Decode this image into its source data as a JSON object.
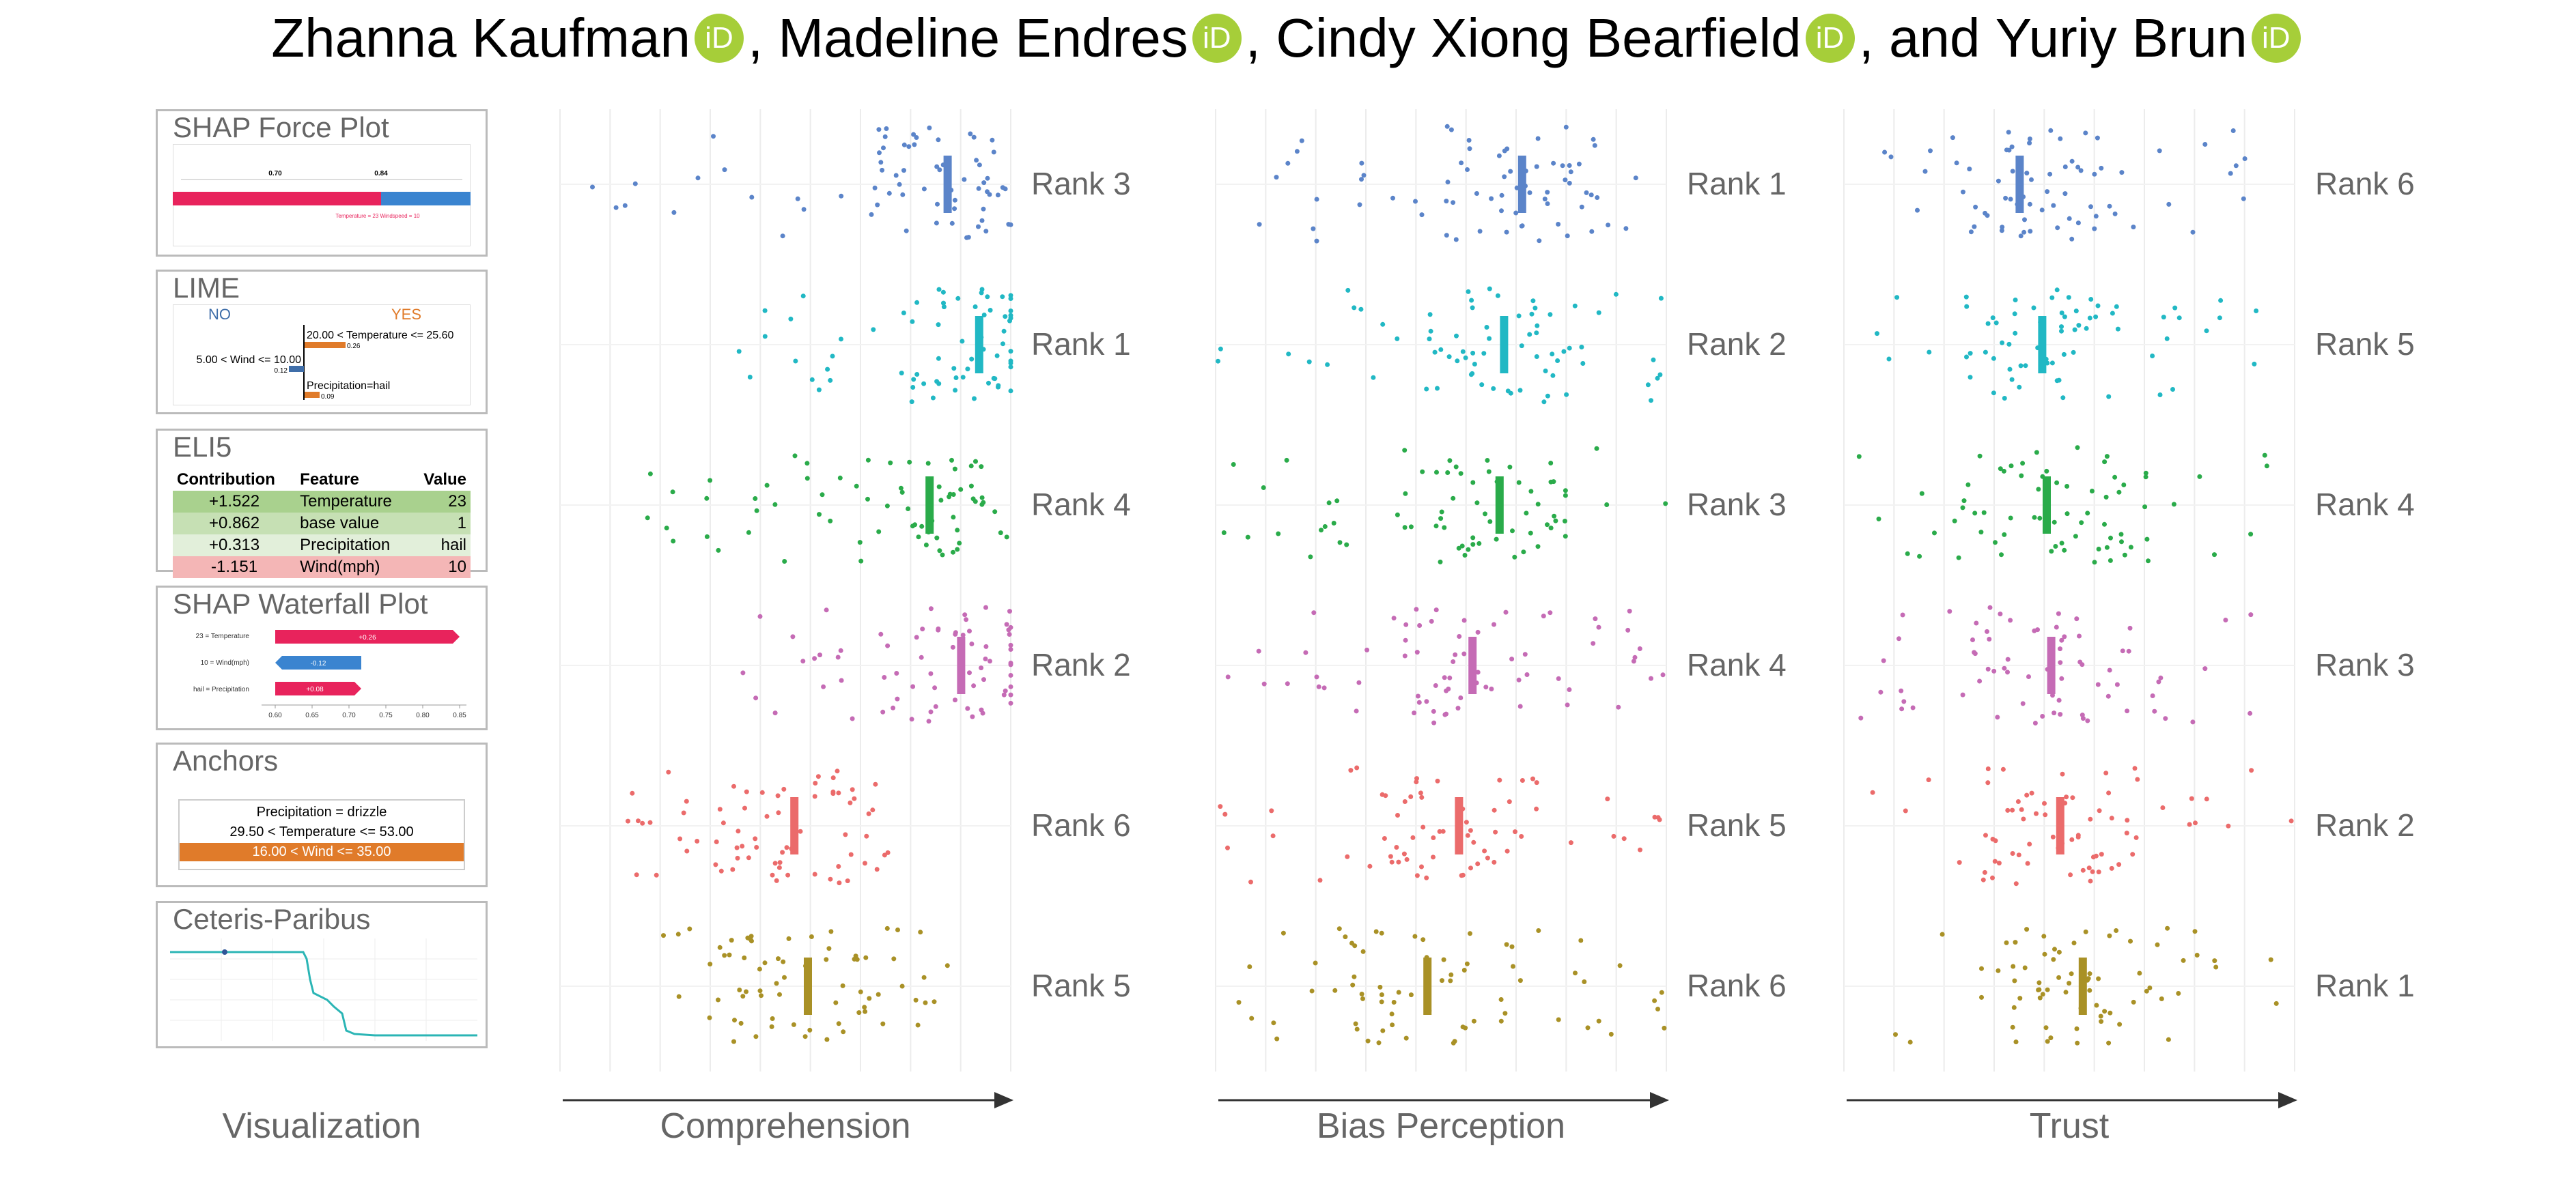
{
  "authors": [
    {
      "name": "Zhanna Kaufman",
      "suffix": ""
    },
    {
      "name": "Madeline Endres",
      "suffix": ""
    },
    {
      "name": "Cindy Xiong Bearfield",
      "suffix": ""
    },
    {
      "name": "Yuriy Brun",
      "suffix": ""
    }
  ],
  "orcid_glyph": "iD",
  "orcid_color": "#a6ce39",
  "separator": ", ",
  "last_separator": ", and ",
  "panels": {
    "shap_force": {
      "title": "SHAP Force Plot",
      "labels": [
        "0.70",
        "0.84"
      ],
      "caption": "Temperature = 23  Windspeed = 10",
      "colors": {
        "positive": "#e8235c",
        "negative": "#3a84d0"
      }
    },
    "lime": {
      "title": "LIME",
      "no": "NO",
      "yes": "YES",
      "rule_temp": "20.00 < Temperature <= 25.60",
      "val_temp": "0.26",
      "rule_wind": "5.00 < Wind <= 10.00",
      "val_wind": "0.12",
      "rule_precip": "Precipitation=hail",
      "val_precip": "0.09",
      "colors": {
        "no": "#3f6ea9",
        "yes": "#e07b2a"
      }
    },
    "eli5": {
      "title": "ELI5",
      "headers": [
        "Contribution",
        "Feature",
        "Value"
      ],
      "rows": [
        {
          "contribution": "+1.522",
          "feature": "Temperature",
          "value": "23",
          "color": "#a9d18e"
        },
        {
          "contribution": "+0.862",
          "feature": "base value",
          "value": "1",
          "color": "#c6e0b4"
        },
        {
          "contribution": "+0.313",
          "feature": "Precipitation",
          "value": "hail",
          "color": "#e2efda"
        },
        {
          "contribution": "-1.151",
          "feature": "Wind(mph)",
          "value": "10",
          "color": "#f4b6b6"
        }
      ]
    },
    "shap_waterfall": {
      "title": "SHAP Waterfall Plot",
      "rows": [
        {
          "label": "23 = Temperature",
          "value": "+0.26",
          "color": "#e8235c"
        },
        {
          "label": "10 = Wind(mph)",
          "value": "-0.12",
          "color": "#3a84d0"
        },
        {
          "label": "hail = Precipitation",
          "value": "+0.08",
          "color": "#e8235c"
        }
      ],
      "ticks": [
        "0.60",
        "0.65",
        "0.70",
        "0.75",
        "0.80",
        "0.85"
      ]
    },
    "anchors": {
      "title": "Anchors",
      "lines": [
        "Precipitation = drizzle",
        "29.50 < Temperature <= 53.00",
        "16.00 < Wind <= 35.00"
      ],
      "highlight_color": "#e07b2a"
    },
    "ceteris": {
      "title": "Ceteris-Paribus",
      "line_color": "#2bb5b5"
    }
  },
  "bottom_labels": {
    "visualization": "Visualization",
    "comprehension": "Comprehension",
    "bias": "Bias Perception",
    "trust": "Trust"
  },
  "series_colors": [
    "#5b84c9",
    "#21b8c4",
    "#2aab4a",
    "#c56bb5",
    "#eb6b6b",
    "#a99126"
  ],
  "chart_data": [
    {
      "type": "scatter",
      "title": "",
      "xlabel": "Comprehension",
      "ylabel": "",
      "ylim": [
        0,
        6
      ],
      "rows": [
        "SHAP Force Plot",
        "LIME",
        "ELI5",
        "SHAP Waterfall Plot",
        "Anchors",
        "Ceteris-Paribus"
      ],
      "ranks": [
        "Rank 3",
        "Rank 1",
        "Rank 4",
        "Rank 2",
        "Rank 6",
        "Rank 5"
      ],
      "means": [
        0.86,
        0.93,
        0.82,
        0.89,
        0.52,
        0.55
      ],
      "spreads": [
        [
          0.0,
          1.0
        ],
        [
          0.35,
          1.0
        ],
        [
          0.18,
          1.0
        ],
        [
          0.4,
          1.0
        ],
        [
          0.14,
          0.75
        ],
        [
          0.22,
          0.88
        ]
      ]
    },
    {
      "type": "scatter",
      "title": "",
      "xlabel": "Bias Perception",
      "ylabel": "",
      "ylim": [
        0,
        6
      ],
      "rows": [
        "SHAP Force Plot",
        "LIME",
        "ELI5",
        "SHAP Waterfall Plot",
        "Anchors",
        "Ceteris-Paribus"
      ],
      "ranks": [
        "Rank 1",
        "Rank 2",
        "Rank 3",
        "Rank 4",
        "Rank 5",
        "Rank 6"
      ],
      "means": [
        0.68,
        0.64,
        0.63,
        0.57,
        0.54,
        0.47
      ],
      "spreads": [
        [
          0.0,
          1.0
        ],
        [
          0.0,
          1.0
        ],
        [
          0.0,
          1.0
        ],
        [
          0.0,
          1.0
        ],
        [
          0.0,
          1.0
        ],
        [
          0.0,
          1.0
        ]
      ]
    },
    {
      "type": "scatter",
      "title": "",
      "xlabel": "Trust",
      "ylabel": "",
      "ylim": [
        0,
        6
      ],
      "rows": [
        "SHAP Force Plot",
        "LIME",
        "ELI5",
        "SHAP Waterfall Plot",
        "Anchors",
        "Ceteris-Paribus"
      ],
      "ranks": [
        "Rank 6",
        "Rank 5",
        "Rank 4",
        "Rank 3",
        "Rank 2",
        "Rank 1"
      ],
      "means": [
        0.39,
        0.44,
        0.45,
        0.46,
        0.48,
        0.53
      ],
      "spreads": [
        [
          0.05,
          0.95
        ],
        [
          0.05,
          0.92
        ],
        [
          0.02,
          1.0
        ],
        [
          0.02,
          0.97
        ],
        [
          0.02,
          1.0
        ],
        [
          0.08,
          1.0
        ]
      ]
    }
  ]
}
